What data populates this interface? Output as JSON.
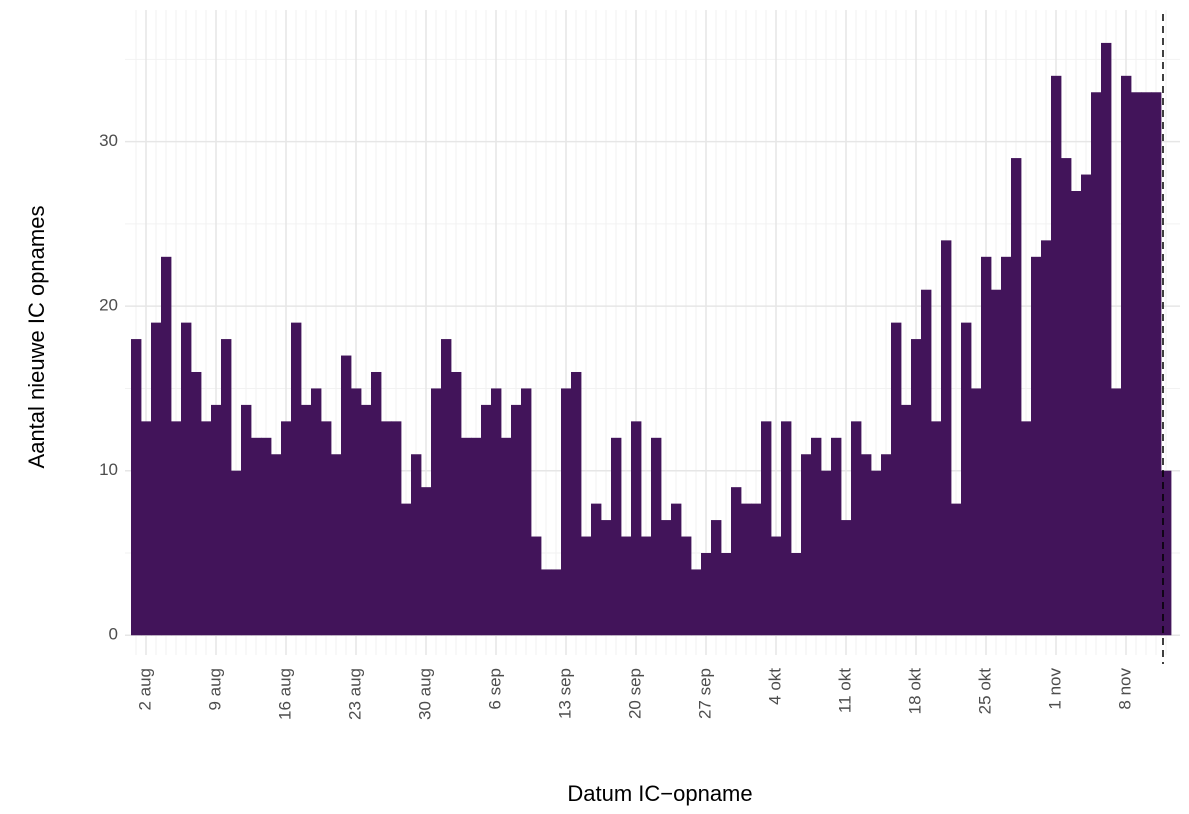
{
  "chart_data": {
    "type": "bar",
    "x_label": "Datum IC−opname",
    "y_label": "Aantal nieuwe IC opnames",
    "categories": [
      null,
      "2 aug",
      null,
      null,
      null,
      null,
      null,
      null,
      "9 aug",
      null,
      null,
      null,
      null,
      null,
      null,
      "16 aug",
      null,
      null,
      null,
      null,
      null,
      null,
      "23 aug",
      null,
      null,
      null,
      null,
      null,
      null,
      "30 aug",
      null,
      null,
      null,
      null,
      null,
      null,
      "6 sep",
      null,
      null,
      null,
      null,
      null,
      null,
      "13 sep",
      null,
      null,
      null,
      null,
      null,
      null,
      "20 sep",
      null,
      null,
      null,
      null,
      null,
      null,
      "27 sep",
      null,
      null,
      null,
      null,
      null,
      null,
      "4 okt",
      null,
      null,
      null,
      null,
      null,
      null,
      "11 okt",
      null,
      null,
      null,
      null,
      null,
      null,
      "18 okt",
      null,
      null,
      null,
      null,
      null,
      null,
      "25 okt",
      null,
      null,
      null,
      null,
      null,
      null,
      "1 nov",
      null,
      null,
      null,
      null,
      null,
      null,
      "8 nov",
      null,
      null,
      null,
      null
    ],
    "values": [
      18,
      13,
      19,
      23,
      13,
      19,
      16,
      13,
      14,
      18,
      10,
      14,
      12,
      12,
      11,
      13,
      19,
      14,
      15,
      13,
      11,
      17,
      15,
      14,
      16,
      13,
      13,
      8,
      11,
      9,
      15,
      18,
      16,
      12,
      12,
      14,
      15,
      12,
      14,
      15,
      6,
      4,
      4,
      15,
      16,
      6,
      8,
      7,
      12,
      6,
      13,
      6,
      12,
      7,
      8,
      6,
      4,
      5,
      7,
      5,
      9,
      8,
      8,
      13,
      6,
      13,
      5,
      11,
      12,
      10,
      12,
      7,
      13,
      11,
      10,
      11,
      19,
      14,
      18,
      21,
      13,
      24,
      8,
      19,
      15,
      23,
      21,
      23,
      29,
      13,
      23,
      24,
      34,
      29,
      27,
      28,
      33,
      36,
      15,
      34,
      33,
      33,
      33,
      10
    ],
    "color": "#42145a",
    "ylim": [
      -1.2,
      38
    ],
    "yticks": [
      0,
      10,
      20,
      30
    ],
    "grid": true
  }
}
